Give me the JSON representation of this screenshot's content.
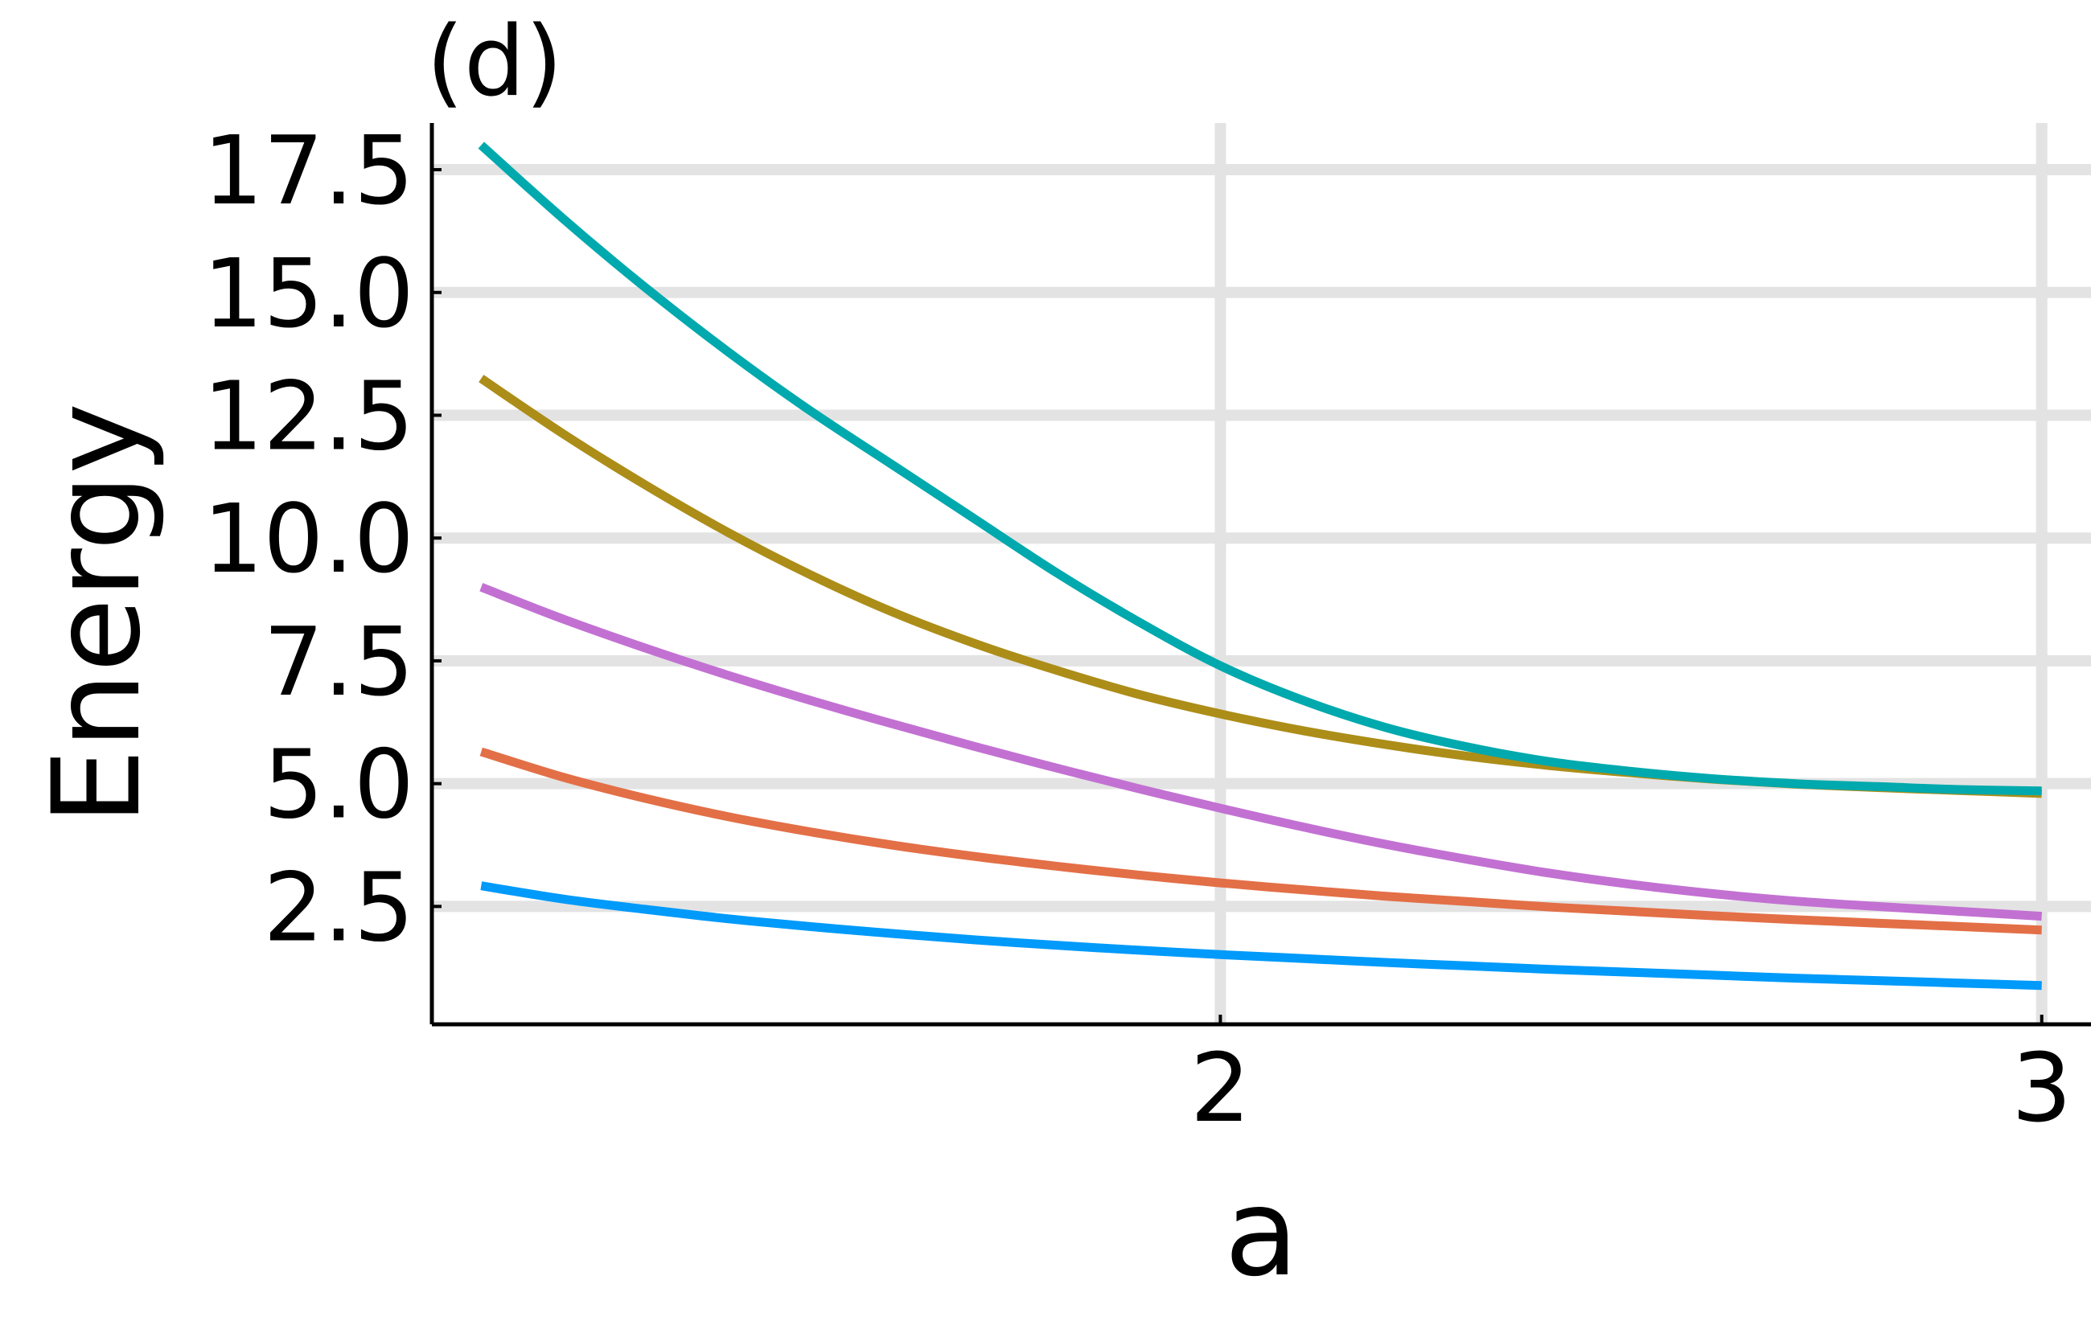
{
  "chart_data": {
    "type": "line",
    "title": "(d)",
    "xlabel": "a",
    "ylabel": "Energy",
    "xlim": [
      1.04,
      3.06
    ],
    "ylim": [
      0.1,
      18.45
    ],
    "x_ticks": [
      {
        "value": 2,
        "label": "2"
      },
      {
        "value": 3,
        "label": "3"
      }
    ],
    "y_ticks": [
      {
        "value": 2.5,
        "label": "2.5"
      },
      {
        "value": 5.0,
        "label": "5.0"
      },
      {
        "value": 7.5,
        "label": "7.5"
      },
      {
        "value": 10.0,
        "label": "10.0"
      },
      {
        "value": 12.5,
        "label": "12.5"
      },
      {
        "value": 15.0,
        "label": "15.0"
      },
      {
        "value": 17.5,
        "label": "17.5"
      }
    ],
    "grid": true,
    "legend": "none",
    "x": [
      1.1,
      1.2,
      1.3,
      1.4,
      1.5,
      1.6,
      1.7,
      1.8,
      1.9,
      2.0,
      2.1,
      2.2,
      2.3,
      2.4,
      2.5,
      2.6,
      2.7,
      2.8,
      2.9,
      3.0
    ],
    "series": [
      {
        "color": "#009AFA",
        "values": [
          2.92,
          2.65,
          2.44,
          2.25,
          2.09,
          1.95,
          1.82,
          1.71,
          1.61,
          1.52,
          1.44,
          1.36,
          1.29,
          1.22,
          1.16,
          1.1,
          1.04,
          0.99,
          0.94,
          0.89
        ]
      },
      {
        "color": "#E36F47",
        "values": [
          5.65,
          5.13,
          4.7,
          4.33,
          4.02,
          3.75,
          3.52,
          3.32,
          3.14,
          2.98,
          2.84,
          2.71,
          2.6,
          2.49,
          2.4,
          2.31,
          2.23,
          2.16,
          2.09,
          2.02
        ]
      },
      {
        "color": "#C271D2",
        "values": [
          9.0,
          8.35,
          7.76,
          7.21,
          6.7,
          6.22,
          5.76,
          5.32,
          4.9,
          4.5,
          4.12,
          3.77,
          3.46,
          3.18,
          2.95,
          2.76,
          2.61,
          2.5,
          2.4,
          2.3
        ]
      },
      {
        "color": "#AC8D18",
        "values": [
          13.25,
          12.12,
          11.08,
          10.12,
          9.26,
          8.5,
          7.86,
          7.31,
          6.82,
          6.42,
          6.08,
          5.8,
          5.56,
          5.37,
          5.22,
          5.09,
          4.99,
          4.92,
          4.86,
          4.8
        ]
      },
      {
        "color": "#00A9AD",
        "values": [
          18.0,
          16.5,
          15.1,
          13.8,
          12.6,
          11.5,
          10.4,
          9.3,
          8.3,
          7.4,
          6.7,
          6.15,
          5.75,
          5.45,
          5.25,
          5.1,
          5.0,
          4.94,
          4.88,
          4.85
        ]
      }
    ]
  }
}
